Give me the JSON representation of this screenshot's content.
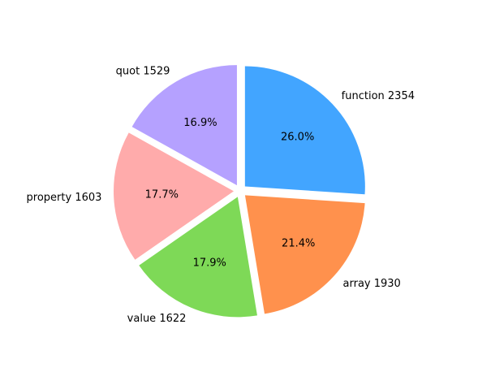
{
  "chart_data": {
    "type": "pie",
    "title": "",
    "start_angle_deg": 90,
    "direction": "clockwise",
    "exploded": true,
    "slices": [
      {
        "label": "function",
        "value": 2354,
        "label_text": "function 2354",
        "percent_text": "26.0%",
        "color": "#42a5ff"
      },
      {
        "label": "array",
        "value": 1930,
        "label_text": "array 1930",
        "percent_text": "21.4%",
        "color": "#ff914d"
      },
      {
        "label": "value",
        "value": 1622,
        "label_text": "value 1622",
        "percent_text": "17.9%",
        "color": "#7ed957"
      },
      {
        "label": "property",
        "value": 1603,
        "label_text": "property 1603",
        "percent_text": "17.7%",
        "color": "#ffabab"
      },
      {
        "label": "quot",
        "value": 1529,
        "label_text": "quot 1529",
        "percent_text": "16.9%",
        "color": "#b5a1ff"
      }
    ]
  }
}
